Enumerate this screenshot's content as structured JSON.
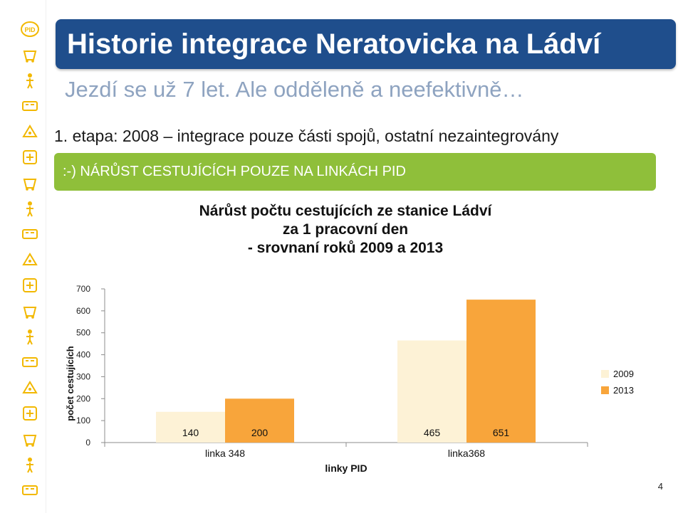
{
  "rail": {
    "icons": [
      "pid-logo-icon",
      "train-icon",
      "tram-icon",
      "bus-icon",
      "metro-icon",
      "ferry-icon",
      "person-icon",
      "station-icon",
      "ticket-icon",
      "timetable-icon",
      "phone-icon",
      "wheelchair-icon",
      "family-icon",
      "escalator-icon",
      "plane-icon",
      "stroller-icon",
      "bicycle-icon",
      "dog-icon",
      "footprints-icon"
    ],
    "accent": "#f2b800"
  },
  "header": {
    "title": "Historie integrace Neratovicka na Ládví",
    "subtitle": "Jezdí se už 7 let. Ale odděleně a neefektivně…",
    "stage_line": "1. etapa: 2008 – integrace pouze části spojů, ostatní nezaintegrovány",
    "highlight": ":-)  NÁRŮST CESTUJÍCÍCH POUZE NA LINKÁCH PID",
    "title_bg": "#1f4e8c",
    "highlight_bg": "#8fbf3a"
  },
  "chart_data": {
    "type": "bar",
    "title_lines": [
      "Nárůst počtu cestujících ze stanice Ládví",
      "za 1 pracovní den",
      "- srovnaní roků 2009 a 2013"
    ],
    "categories": [
      "linka 348",
      "linka368"
    ],
    "series": [
      {
        "name": "2009",
        "values": [
          140,
          465
        ],
        "color": "#fdf2d6"
      },
      {
        "name": "2013",
        "values": [
          200,
          651
        ],
        "color": "#f8a53b"
      }
    ],
    "data_labels": [
      "140",
      "200",
      "465",
      "651"
    ],
    "xlabel": "linky PID",
    "ylabel": "počet cestujících",
    "ylim": [
      0,
      700
    ],
    "yticks": [
      0,
      100,
      200,
      300,
      400,
      500,
      600,
      700
    ],
    "grid": false,
    "legend_position": "right"
  },
  "page_number": "4"
}
